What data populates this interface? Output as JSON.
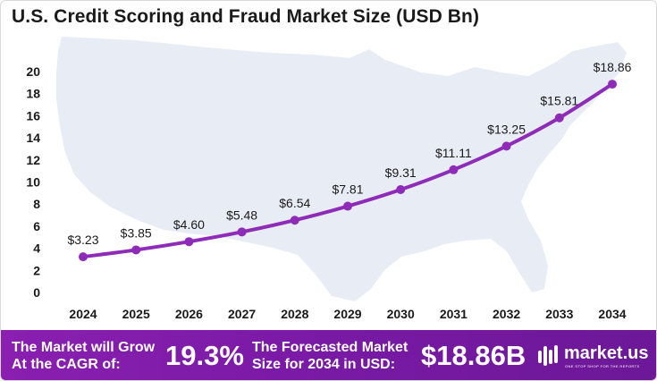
{
  "title": "U.S. Credit Scoring and Fraud Market Size (USD Bn)",
  "chart_data": {
    "type": "line",
    "title": "U.S. Credit Scoring and Fraud Market Size (USD Bn)",
    "xlabel": "",
    "ylabel": "",
    "categories": [
      "2024",
      "2025",
      "2026",
      "2027",
      "2028",
      "2029",
      "2030",
      "2031",
      "2032",
      "2033",
      "2034"
    ],
    "series": [
      {
        "values": [
          3.23,
          3.85,
          4.6,
          5.48,
          6.54,
          7.81,
          9.31,
          11.11,
          13.25,
          15.81,
          18.86
        ],
        "labels": [
          "$3.23",
          "$3.85",
          "$4.60",
          "$5.48",
          "$6.54",
          "$7.81",
          "$9.31",
          "$11.11",
          "$13.25",
          "$15.81",
          "$18.86"
        ]
      }
    ],
    "yticks": [
      "0",
      "2",
      "4",
      "6",
      "8",
      "10",
      "12",
      "14",
      "16",
      "18",
      "20"
    ],
    "ylim": [
      0,
      20
    ],
    "grid": false,
    "legend": "none",
    "line_color": "#8e2bb8",
    "background": "US map silhouette"
  },
  "footer": {
    "grow_line1": "The Market will Grow",
    "grow_line2": "At the CAGR of:",
    "cagr": "19.3%",
    "forecast_line1": "The Forecasted Market",
    "forecast_line2": "Size for 2034 in USD:",
    "forecast_value": "$18.86B",
    "brand": "market.us",
    "brand_tagline": "ONE STOP SHOP FOR THE REPORTS"
  },
  "colors": {
    "accent": "#8e2bb8",
    "footer_bg": "#7b1fa2",
    "map": "#e7ebf3",
    "text": "#1a1a1a"
  }
}
